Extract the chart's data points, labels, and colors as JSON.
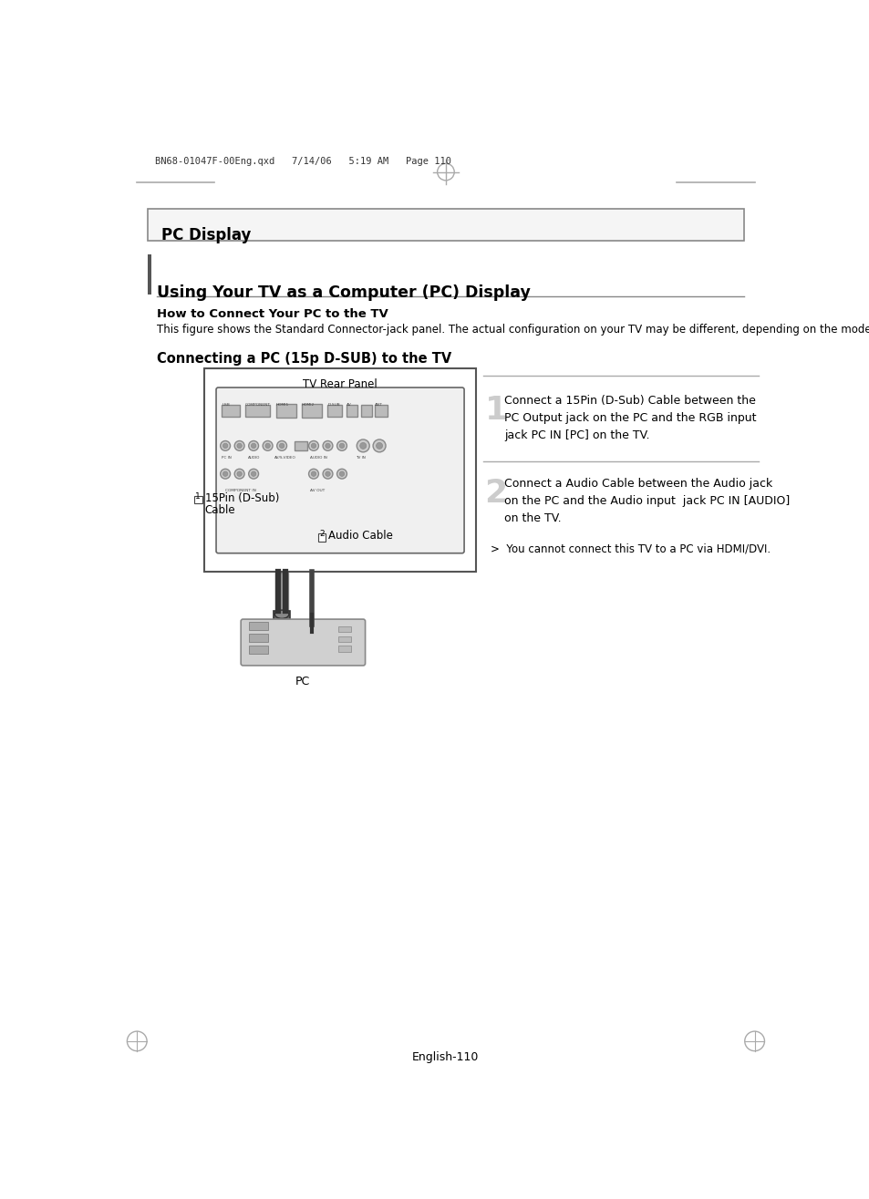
{
  "page_header": "BN68-01047F-00Eng.qxd   7/14/06   5:19 AM   Page 110",
  "section_title": "PC Display",
  "main_title": "Using Your TV as a Computer (PC) Display",
  "subtitle1": "How to Connect Your PC to the TV",
  "subtitle1_text": "This figure shows the Standard Connector-jack panel. The actual configuration on your TV may be different, depending on the model.",
  "subtitle2": "Connecting a PC (15p D-SUB) to the TV",
  "tv_panel_label": "TV Rear Panel",
  "step1_text": "Connect a 15Pin (D-Sub) Cable between the\nPC Output jack on the PC and the RGB input\njack PC IN [PC] on the TV.",
  "step2_text": "Connect a Audio Cable between the Audio jack\non the PC and the Audio input  jack PC IN [AUDIO]\non the TV.",
  "note_text": ">  You cannot connect this TV to a PC via HDMI/DVI.",
  "pc_label": "PC",
  "footer": "English-110",
  "bg_color": "#ffffff",
  "text_color": "#000000"
}
